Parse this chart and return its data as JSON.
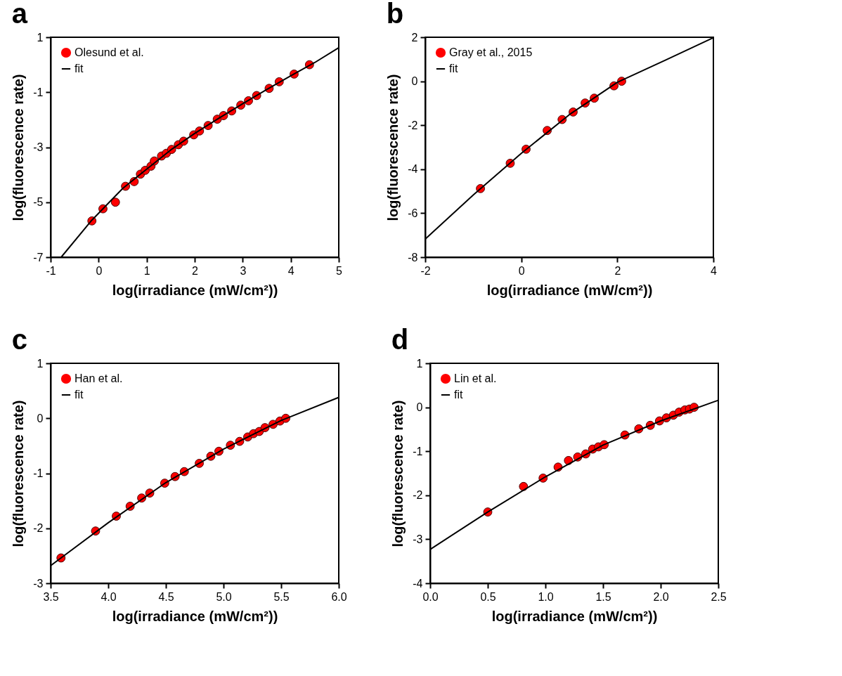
{
  "chart_data": [
    {
      "type": "scatter",
      "title": "a",
      "xlabel": "log(irradiance (mW/cm²))",
      "ylabel": "log(fluorescence rate)",
      "xlim": [
        -1,
        5
      ],
      "ylim": [
        -7,
        1
      ],
      "xticks": [
        -1,
        0,
        1,
        2,
        3,
        4,
        5
      ],
      "yticks": [
        -7,
        -5,
        -3,
        -1,
        1
      ],
      "legend": "top left",
      "series": [
        {
          "name": "Olesund et al.",
          "color": "#ff0000",
          "marker": "circle",
          "x": [
            -0.14,
            0.09,
            0.35,
            0.56,
            0.74,
            0.87,
            0.97,
            1.09,
            1.16,
            1.31,
            1.41,
            1.52,
            1.66,
            1.77,
            1.98,
            2.1,
            2.28,
            2.47,
            2.6,
            2.77,
            2.96,
            3.12,
            3.29,
            3.55,
            3.76,
            4.07,
            4.39
          ],
          "values": [
            -5.68,
            -5.24,
            -5.0,
            -4.42,
            -4.25,
            -3.98,
            -3.84,
            -3.69,
            -3.5,
            -3.32,
            -3.22,
            -3.08,
            -2.91,
            -2.78,
            -2.55,
            -2.41,
            -2.21,
            -1.98,
            -1.85,
            -1.68,
            -1.47,
            -1.31,
            -1.12,
            -0.86,
            -0.62,
            -0.34,
            0.0
          ]
        },
        {
          "name": "fit",
          "type": "line",
          "color": "#000000",
          "x": [
            -0.78,
            -0.14,
            0.5,
            1,
            1.5,
            2,
            2.5,
            3,
            3.5,
            4,
            4.5,
            5
          ],
          "values": [
            -7,
            -5.65,
            -4.5,
            -3.8,
            -3.1,
            -2.5,
            -1.95,
            -1.42,
            -0.9,
            -0.4,
            0.08,
            0.62
          ]
        }
      ]
    },
    {
      "type": "scatter",
      "title": "b",
      "xlabel": "log(irradiance (mW/cm²))",
      "ylabel": "log(fluorescence rate)",
      "xlim": [
        -2,
        4
      ],
      "ylim": [
        -8,
        2
      ],
      "xticks": [
        -2,
        0,
        2,
        4
      ],
      "yticks": [
        -8,
        -6,
        -4,
        -2,
        0,
        2
      ],
      "legend": "top left",
      "series": [
        {
          "name": "Gray et al., 2015",
          "color": "#ff0000",
          "marker": "circle",
          "x": [
            -0.85,
            -0.23,
            0.1,
            0.54,
            0.85,
            1.08,
            1.33,
            1.52,
            1.93,
            2.09
          ],
          "values": [
            -4.88,
            -3.73,
            -3.09,
            -2.24,
            -1.74,
            -1.4,
            -0.99,
            -0.77,
            -0.21,
            0.0
          ]
        },
        {
          "name": "fit",
          "type": "line",
          "color": "#000000",
          "x": [
            -2,
            -1,
            0,
            1,
            2,
            3,
            4
          ],
          "values": [
            -7.18,
            -5.17,
            -3.28,
            -1.52,
            -0.05,
            0.96,
            1.98
          ]
        }
      ]
    },
    {
      "type": "scatter",
      "title": "c",
      "xlabel": "log(irradiance (mW/cm²))",
      "ylabel": "log(fluorescence rate)",
      "xlim": [
        3.5,
        6
      ],
      "ylim": [
        -3,
        1
      ],
      "xticks": [
        {
          "value": 3.5,
          "label": "3.5"
        },
        {
          "value": 4,
          "label": "4.0"
        },
        {
          "value": 4.5,
          "label": "4.5"
        },
        {
          "value": 5,
          "label": "5.0"
        },
        {
          "value": 5.5,
          "label": "5.5"
        },
        {
          "value": 6,
          "label": "6.0"
        }
      ],
      "yticks": [
        -3,
        -2,
        -1,
        0,
        1
      ],
      "legend": "top left",
      "series": [
        {
          "name": "Han et al.",
          "color": "#ff0000",
          "marker": "circle",
          "x": [
            3.59,
            3.89,
            4.07,
            4.19,
            4.29,
            4.36,
            4.49,
            4.58,
            4.66,
            4.79,
            4.89,
            4.96,
            5.06,
            5.14,
            5.21,
            5.26,
            5.31,
            5.36,
            5.43,
            5.49,
            5.54
          ],
          "values": [
            -2.54,
            -2.05,
            -1.78,
            -1.6,
            -1.45,
            -1.36,
            -1.18,
            -1.06,
            -0.97,
            -0.82,
            -0.69,
            -0.6,
            -0.49,
            -0.42,
            -0.34,
            -0.28,
            -0.24,
            -0.17,
            -0.11,
            -0.05,
            0.0
          ]
        },
        {
          "name": "fit",
          "type": "line",
          "color": "#000000",
          "x": [
            3.5,
            4,
            4.5,
            5,
            5.5,
            6
          ],
          "values": [
            -2.68,
            -1.9,
            -1.17,
            -0.56,
            -0.04,
            0.38
          ]
        }
      ]
    },
    {
      "type": "scatter",
      "title": "d",
      "xlabel": "log(irradiance (mW/cm²))",
      "ylabel": "log(fluorescence rate)",
      "xlim": [
        0,
        2.5
      ],
      "ylim": [
        -4,
        1
      ],
      "xticks": [
        {
          "value": 0,
          "label": "0.0"
        },
        {
          "value": 0.5,
          "label": "0.5"
        },
        {
          "value": 1,
          "label": "1.0"
        },
        {
          "value": 1.5,
          "label": "1.5"
        },
        {
          "value": 2,
          "label": "2.0"
        },
        {
          "value": 2.5,
          "label": "2.5"
        }
      ],
      "yticks": [
        -4,
        -3,
        -2,
        -1,
        0,
        1
      ],
      "legend": "top left",
      "series": [
        {
          "name": "Lin et al.",
          "color": "#ff0000",
          "marker": "circle",
          "x": [
            0.5,
            0.81,
            0.98,
            1.11,
            1.2,
            1.28,
            1.35,
            1.41,
            1.46,
            1.51,
            1.69,
            1.81,
            1.91,
            1.99,
            2.05,
            2.11,
            2.16,
            2.21,
            2.25,
            2.29
          ],
          "values": [
            -2.38,
            -1.8,
            -1.61,
            -1.36,
            -1.21,
            -1.13,
            -1.06,
            -0.95,
            -0.9,
            -0.85,
            -0.63,
            -0.49,
            -0.41,
            -0.31,
            -0.24,
            -0.18,
            -0.11,
            -0.06,
            -0.04,
            0.0
          ]
        },
        {
          "name": "fit",
          "type": "line",
          "color": "#000000",
          "x": [
            0,
            0.5,
            1,
            1.5,
            2,
            2.5
          ],
          "values": [
            -3.23,
            -2.38,
            -1.58,
            -0.86,
            -0.31,
            0.16
          ]
        }
      ]
    }
  ]
}
